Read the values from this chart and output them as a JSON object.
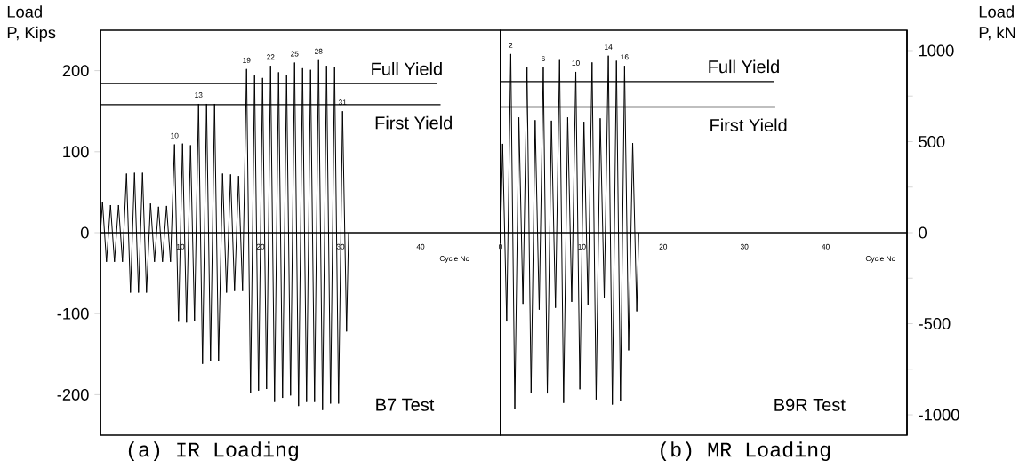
{
  "chart_data": [
    {
      "type": "line",
      "title": "(a) IR Loading",
      "xlabel": "Cycle No",
      "ylabel": "Load P, Kips",
      "xlim": [
        0,
        50
      ],
      "ylim": [
        -250,
        250
      ],
      "xticks": [
        10,
        20,
        30,
        40
      ],
      "yticks": [
        -200,
        -100,
        0,
        100,
        200
      ],
      "annotations": [
        {
          "text": "10",
          "x": 9.25,
          "y": 109
        },
        {
          "text": "13",
          "x": 12.25,
          "y": 159
        },
        {
          "text": "19",
          "x": 18.25,
          "y": 202
        },
        {
          "text": "22",
          "x": 21.25,
          "y": 206
        },
        {
          "text": "25",
          "x": 24.25,
          "y": 210
        },
        {
          "text": "28",
          "x": 27.25,
          "y": 213
        },
        {
          "text": "31",
          "x": 30.25,
          "y": 150
        },
        "B7 Test"
      ],
      "series": [
        {
          "color": "#000000",
          "x": [
            0,
            0.25,
            0.75,
            1.25,
            1.75,
            2.25,
            2.75,
            3.25,
            3.75,
            4.25,
            4.75,
            5.25,
            5.75,
            6.25,
            6.75,
            7.25,
            7.75,
            8.25,
            8.75,
            9.25,
            9.75,
            10.25,
            10.75,
            11.25,
            11.75,
            12.25,
            12.75,
            13.25,
            13.75,
            14.25,
            14.75,
            15.25,
            15.75,
            16.25,
            16.75,
            17.25,
            17.75,
            18.25,
            18.75,
            19.25,
            19.75,
            20.25,
            20.75,
            21.25,
            21.75,
            22.25,
            22.75,
            23.25,
            23.75,
            24.25,
            24.75,
            25.25,
            25.75,
            26.25,
            26.75,
            27.25,
            27.75,
            28.25,
            28.75,
            29.25,
            29.75,
            30.25,
            30.75,
            31
          ],
          "values": [
            0,
            38,
            -36,
            34,
            -36,
            34,
            -36,
            73,
            -74,
            74,
            -74,
            74,
            -74,
            36,
            -36,
            32,
            -36,
            33,
            -36,
            109,
            -110,
            110,
            -111,
            108,
            -109,
            159,
            -162,
            159,
            -159,
            159,
            -159,
            73,
            -74,
            72,
            -72,
            70,
            -72,
            202,
            -198,
            194,
            -195,
            191,
            -193,
            206,
            -209,
            198,
            -204,
            195,
            -201,
            210,
            -214,
            203,
            -209,
            201,
            -209,
            213,
            -219,
            206,
            -211,
            205,
            -211,
            150,
            -122,
            0
          ]
        },
        {
          "name": "Full Yield",
          "type": "line",
          "color": "#000000",
          "x": [
            0,
            42
          ],
          "values": [
            184,
            184
          ]
        },
        {
          "name": "First Yield",
          "type": "line",
          "color": "#000000",
          "x": [
            0,
            42.5
          ],
          "values": [
            158,
            158
          ]
        }
      ]
    },
    {
      "type": "line",
      "title": "(b) MR Loading",
      "xlabel": "Cycle No",
      "ylabel": "Load P, kN",
      "xlim": [
        0,
        50
      ],
      "ylim": [
        -1112,
        1112
      ],
      "xticks": [
        0,
        10,
        20,
        30,
        40
      ],
      "yticks": [
        -1000,
        {
          "value": -750,
          "label": null
        },
        -500,
        {
          "value": -250,
          "label": null
        },
        0,
        {
          "value": 250,
          "label": null
        },
        500,
        {
          "value": 750,
          "label": null
        },
        1000
      ],
      "annotations": [
        {
          "text": "2",
          "x": 1.25,
          "y": 981
        },
        {
          "text": "6",
          "x": 5.25,
          "y": 907
        },
        {
          "text": "10",
          "x": 9.25,
          "y": 883
        },
        {
          "text": "14",
          "x": 13.25,
          "y": 972
        },
        {
          "text": "16",
          "x": 15.25,
          "y": 916
        },
        "B9R Test"
      ],
      "series": [
        {
          "color": "#000000",
          "x": [
            0,
            0.25,
            0.75,
            1.25,
            1.75,
            2.25,
            2.75,
            3.25,
            3.75,
            4.25,
            4.75,
            5.25,
            5.75,
            6.25,
            6.75,
            7.25,
            7.75,
            8.25,
            8.75,
            9.25,
            9.75,
            10.25,
            10.75,
            11.25,
            11.75,
            12.25,
            12.75,
            13.25,
            13.75,
            14.25,
            14.75,
            15.25,
            15.75,
            16.25,
            16.75,
            17
          ],
          "values": [
            0,
            488,
            -488,
            981,
            -966,
            633,
            -391,
            907,
            -879,
            618,
            -423,
            907,
            -883,
            615,
            -413,
            948,
            -935,
            633,
            -380,
            883,
            -860,
            609,
            -395,
            935,
            -916,
            628,
            -358,
            972,
            -944,
            944,
            -926,
            916,
            -646,
            492,
            -432,
            0
          ]
        },
        {
          "name": "Full Yield",
          "type": "line",
          "color": "#000000",
          "x": [
            0,
            33.6
          ],
          "values": [
            830,
            830
          ]
        },
        {
          "name": "First Yield",
          "type": "line",
          "color": "#000000",
          "x": [
            0,
            33.8
          ],
          "values": [
            690,
            690
          ]
        }
      ]
    }
  ]
}
